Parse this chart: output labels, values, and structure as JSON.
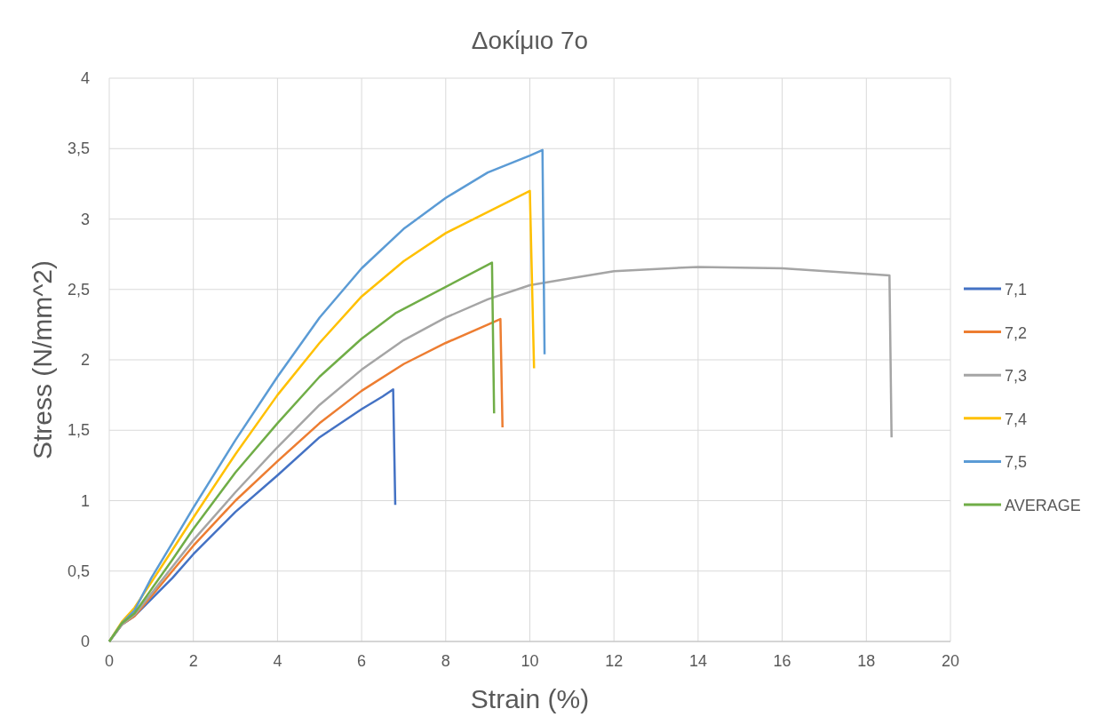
{
  "chart_data": {
    "type": "line",
    "title": "Δοκίμιο 7ο",
    "xlabel": "Strain (%)",
    "ylabel": "Stress (N/mm^2)",
    "xlim": [
      0,
      20
    ],
    "xticks": [
      0,
      2,
      4,
      6,
      8,
      10,
      12,
      14,
      16,
      18,
      20
    ],
    "ylim": [
      0,
      4
    ],
    "yticks": [
      0,
      {
        "value": 0.5,
        "label": "0,5"
      },
      1,
      {
        "value": 1.5,
        "label": "1,5"
      },
      2,
      {
        "value": 2.5,
        "label": "2,5"
      },
      3,
      {
        "value": 3.5,
        "label": "3,5"
      },
      4
    ],
    "grid": true,
    "legend": "right",
    "marker": "none",
    "line_style": "solid",
    "series": [
      {
        "name": "7,1",
        "color": "#4472c4",
        "x": [
          0,
          0.3,
          0.6,
          1,
          1.5,
          2,
          3,
          4,
          5,
          6,
          6.5,
          6.75,
          6.8
        ],
        "values": [
          0,
          0.12,
          0.18,
          0.3,
          0.45,
          0.62,
          0.92,
          1.18,
          1.45,
          1.65,
          1.74,
          1.79,
          0.97
        ]
      },
      {
        "name": "7,2",
        "color": "#ed7d31",
        "x": [
          0,
          0.3,
          0.6,
          1,
          1.5,
          2,
          3,
          4,
          5,
          6,
          7,
          8,
          9,
          9.3,
          9.35
        ],
        "values": [
          0,
          0.12,
          0.18,
          0.32,
          0.5,
          0.68,
          1.0,
          1.28,
          1.55,
          1.78,
          1.97,
          2.12,
          2.25,
          2.29,
          1.52
        ]
      },
      {
        "name": "7,3",
        "color": "#a5a5a5",
        "x": [
          0,
          0.3,
          0.6,
          1,
          1.5,
          2,
          3,
          4,
          5,
          6,
          7,
          8,
          9,
          10,
          11,
          12,
          14,
          16,
          18,
          18.55,
          18.6
        ],
        "values": [
          0,
          0.12,
          0.19,
          0.34,
          0.53,
          0.72,
          1.06,
          1.38,
          1.68,
          1.93,
          2.14,
          2.3,
          2.43,
          2.53,
          2.58,
          2.63,
          2.66,
          2.65,
          2.61,
          2.6,
          1.45
        ]
      },
      {
        "name": "7,4",
        "color": "#ffc000",
        "x": [
          0,
          0.3,
          0.6,
          1,
          1.5,
          2,
          3,
          4,
          5,
          6,
          7,
          8,
          9,
          10,
          10.1
        ],
        "values": [
          0,
          0.14,
          0.24,
          0.42,
          0.65,
          0.88,
          1.33,
          1.75,
          2.12,
          2.45,
          2.7,
          2.9,
          3.05,
          3.2,
          1.94
        ]
      },
      {
        "name": "7,5",
        "color": "#5b9bd5",
        "x": [
          0,
          0.3,
          0.6,
          1,
          1.5,
          2,
          3,
          4,
          5,
          6,
          7,
          8,
          9,
          10,
          10.3,
          10.35
        ],
        "values": [
          0,
          0.13,
          0.22,
          0.45,
          0.7,
          0.95,
          1.43,
          1.88,
          2.3,
          2.65,
          2.93,
          3.15,
          3.33,
          3.45,
          3.49,
          2.04
        ]
      },
      {
        "name": "AVERAGE",
        "color": "#70ad47",
        "x": [
          0,
          0.3,
          0.6,
          1,
          1.5,
          2,
          3,
          4,
          5,
          6,
          6.8,
          9.1,
          9.15
        ],
        "values": [
          0,
          0.13,
          0.2,
          0.37,
          0.58,
          0.8,
          1.2,
          1.55,
          1.88,
          2.15,
          2.33,
          2.69,
          1.62
        ]
      }
    ]
  }
}
